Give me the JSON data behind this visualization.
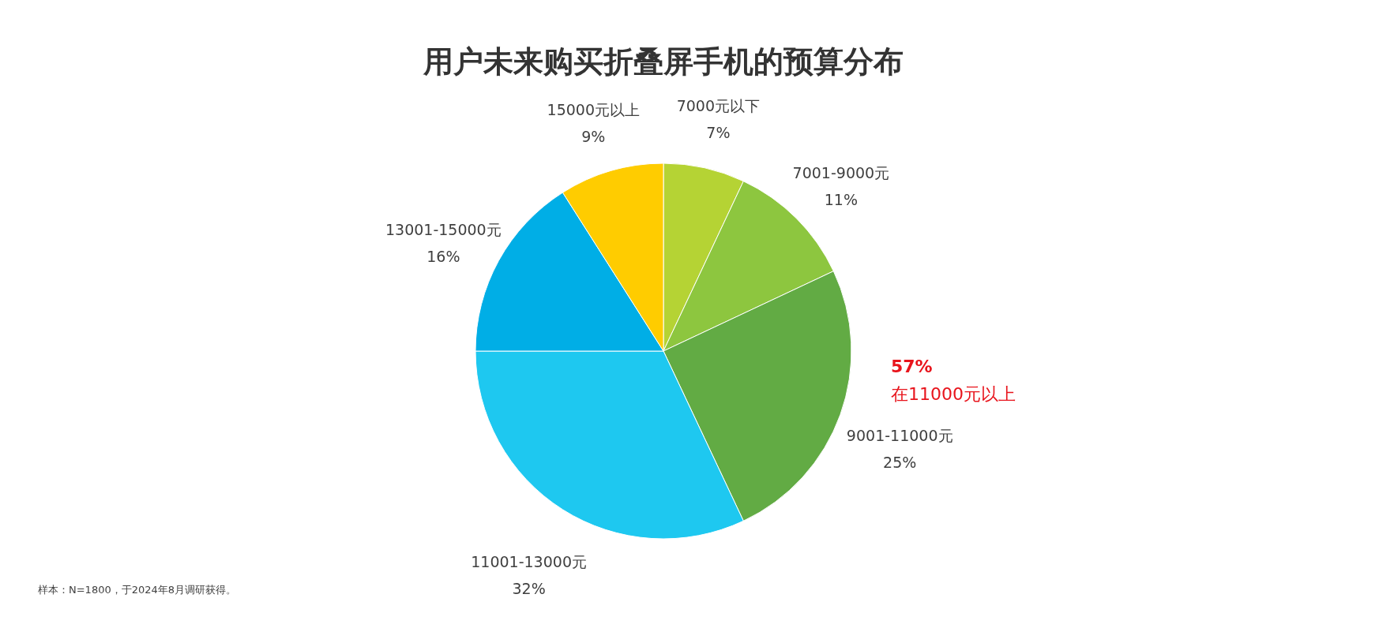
{
  "chart_data": {
    "type": "pie",
    "title": "用户未来购买折叠屏手机的预算分布",
    "categories": [
      "7000元以下",
      "7001-9000元",
      "9001-11000元",
      "11001-13000元",
      "13001-15000元",
      "15000元以上"
    ],
    "values": [
      7,
      11,
      25,
      32,
      16,
      9
    ],
    "value_labels": [
      "7%",
      "11%",
      "25%",
      "32%",
      "16%",
      "9%"
    ],
    "colors": [
      "#b5d334",
      "#8dc63f",
      "#62ab44",
      "#1ec8f0",
      "#00aee6",
      "#ffcc00"
    ],
    "annotations": [
      "57%",
      "在11000元以上",
      "样本：N=1800，于2024年8月调研获得。"
    ]
  }
}
